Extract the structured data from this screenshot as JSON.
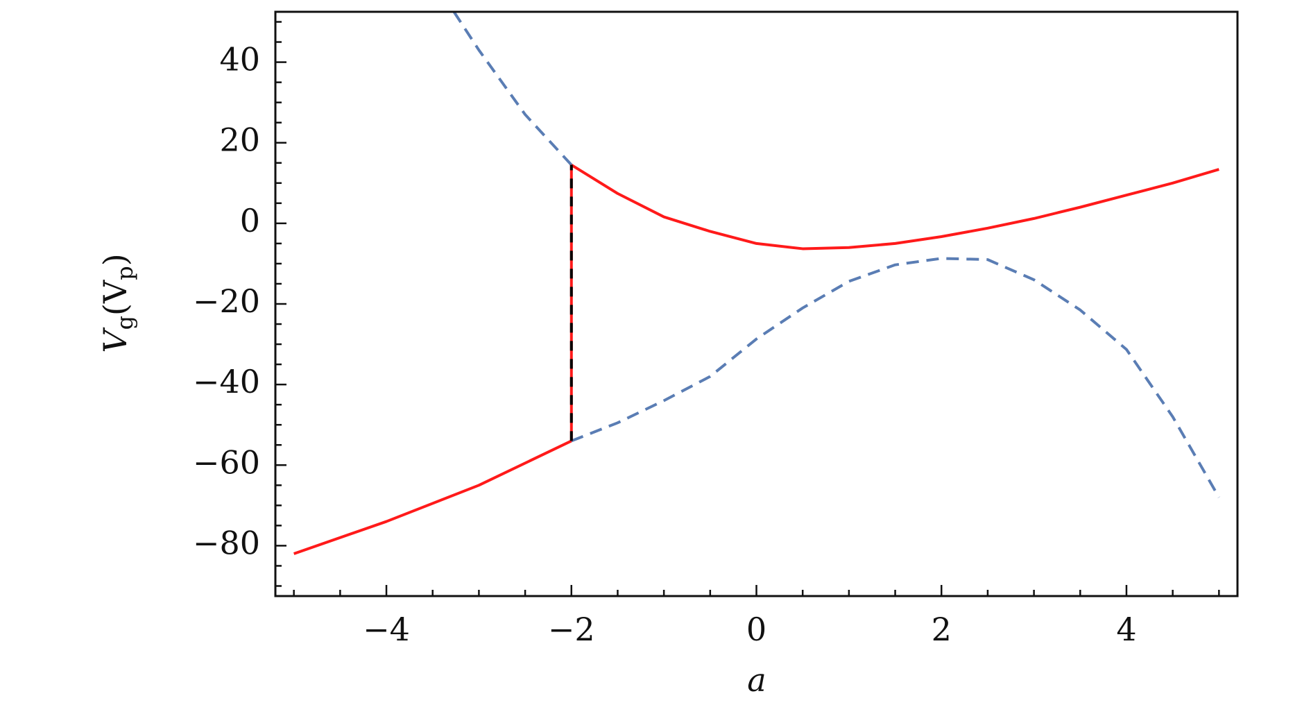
{
  "chart_data": {
    "type": "line",
    "xlabel": "a",
    "ylabel": [
      "V",
      "g",
      "(V",
      "p",
      ")"
    ],
    "xlim": [
      -5.2,
      5.2
    ],
    "ylim": [
      -92.5,
      52.5
    ],
    "xticks": [
      {
        "value": -4,
        "label": "−4"
      },
      {
        "value": -2,
        "label": "−2"
      },
      0,
      2,
      4
    ],
    "yticks": [
      {
        "value": -80,
        "label": "−80"
      },
      {
        "value": -60,
        "label": "−60"
      },
      {
        "value": -40,
        "label": "−40"
      },
      {
        "value": -20,
        "label": "−20"
      },
      0,
      20,
      40
    ],
    "xminorticks": [
      -5,
      -4.5,
      -3.5,
      -3,
      -2.5,
      -1.5,
      -1,
      -0.5,
      0.5,
      1,
      1.5,
      2.5,
      3,
      3.5,
      4.5,
      5
    ],
    "yminorticks": [
      -90,
      -85,
      -75,
      -70,
      -65,
      -55,
      -50,
      -45,
      -35,
      -30,
      -25,
      -15,
      -10,
      -5,
      5,
      10,
      15,
      25,
      30,
      35,
      45,
      50
    ],
    "series": [
      {
        "color": "#ff1a1a",
        "style": "solid",
        "x": [
          -5,
          -4,
          -3,
          -2
        ],
        "values": [
          -82,
          -74,
          -65,
          -54
        ]
      },
      {
        "color": "#ff1a1a",
        "style": "solid",
        "x": [
          -2,
          -1.5,
          -1,
          -0.5,
          0,
          0.5,
          1,
          1.5,
          2,
          2.5,
          3,
          3.5,
          4,
          4.5,
          5
        ],
        "values": [
          14.5,
          7.4,
          1.6,
          -2,
          -5,
          -6.3,
          -6,
          -5,
          -3.3,
          -1.2,
          1.2,
          4,
          7,
          10,
          13.4
        ]
      },
      {
        "color": "#5a7db4",
        "style": "dashed",
        "x": [
          -3.27,
          -3,
          -2.5,
          -2
        ],
        "values": [
          52.5,
          43,
          27,
          14.5
        ]
      },
      {
        "color": "#5a7db4",
        "style": "dashed",
        "x": [
          -2,
          -1.5,
          -1,
          -0.5,
          0,
          0.5,
          1,
          1.5,
          2,
          2.5,
          3,
          3.5,
          4,
          4.5,
          5
        ],
        "values": [
          -54,
          -49.5,
          -44,
          -38,
          -28.7,
          -21,
          -14.4,
          -10.3,
          -8.7,
          -9,
          -14,
          -21.5,
          -31.3,
          -48,
          -68
        ]
      },
      {
        "color": "#ff1a1a",
        "dash_color": "#000000",
        "style": "redblack",
        "x": [
          -2,
          -2
        ],
        "values": [
          -54,
          14.5
        ]
      }
    ]
  }
}
